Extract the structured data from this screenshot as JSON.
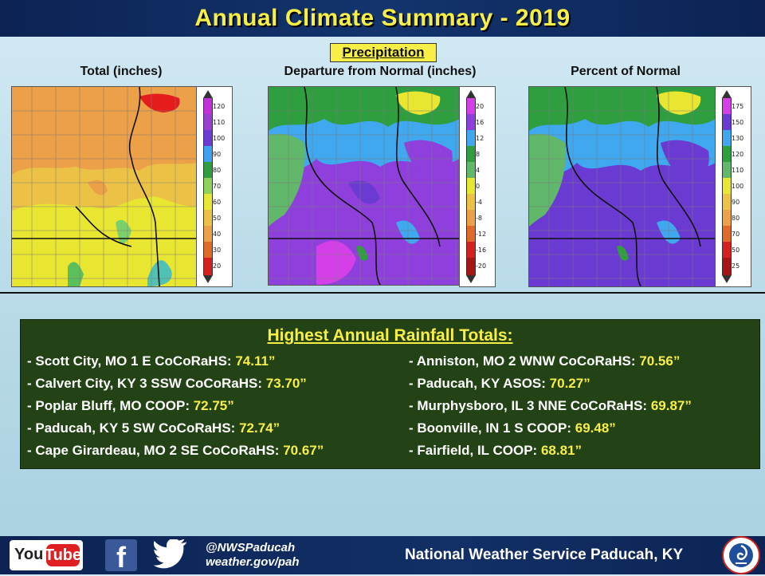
{
  "title": "Annual Climate Summary - 2019",
  "section": "Precipitation",
  "maps": [
    {
      "title": "Total  (inches)",
      "legend": [
        "120",
        "110",
        "100",
        "90",
        "80",
        "70",
        "60",
        "50",
        "40",
        "30",
        "20"
      ]
    },
    {
      "title": "Departure  from Normal  (inches)",
      "legend": [
        "20",
        "16",
        "12",
        "8",
        "4",
        "0",
        "-4",
        "-8",
        "-12",
        "-16",
        "-20"
      ]
    },
    {
      "title": "Percent of Normal",
      "legend": [
        "175",
        "150",
        "130",
        "120",
        "110",
        "100",
        "90",
        "80",
        "70",
        "50",
        "25"
      ]
    }
  ],
  "rainfall": {
    "heading": "Highest Annual Rainfall Totals:",
    "left": [
      {
        "station": "- Scott City, MO 1 E CoCoRaHS: ",
        "value": "74.11”"
      },
      {
        "station": "- Calvert City, KY 3 SSW CoCoRaHS: ",
        "value": "73.70”"
      },
      {
        "station": "- Poplar Bluff, MO COOP: ",
        "value": "72.75”"
      },
      {
        "station": "- Paducah, KY 5 SW CoCoRaHS: ",
        "value": "72.74”"
      },
      {
        "station": "- Cape Girardeau, MO 2 SE CoCoRaHS: ",
        "value": "70.67”"
      }
    ],
    "right": [
      {
        "station": "- Anniston, MO 2 WNW CoCoRaHS: ",
        "value": "70.56”"
      },
      {
        "station": "- Paducah, KY ASOS: ",
        "value": "70.27”"
      },
      {
        "station": "- Murphysboro, IL 3 NNE CoCoRaHS: ",
        "value": "69.87”"
      },
      {
        "station": "- Boonville, IN 1 S COOP: ",
        "value": "69.48”"
      },
      {
        "station": "- Fairfield, IL COOP: ",
        "value": "68.81”"
      }
    ]
  },
  "footer": {
    "youtube_you": "You",
    "youtube_tube": "Tube",
    "facebook": "f",
    "twitter_handle": "@NWSPaducah",
    "website": "weather.gov/pah",
    "office": "National Weather Service Paducah, KY"
  },
  "icons": [
    "youtube-icon",
    "facebook-icon",
    "twitter-icon",
    "nws-logo-icon"
  ]
}
